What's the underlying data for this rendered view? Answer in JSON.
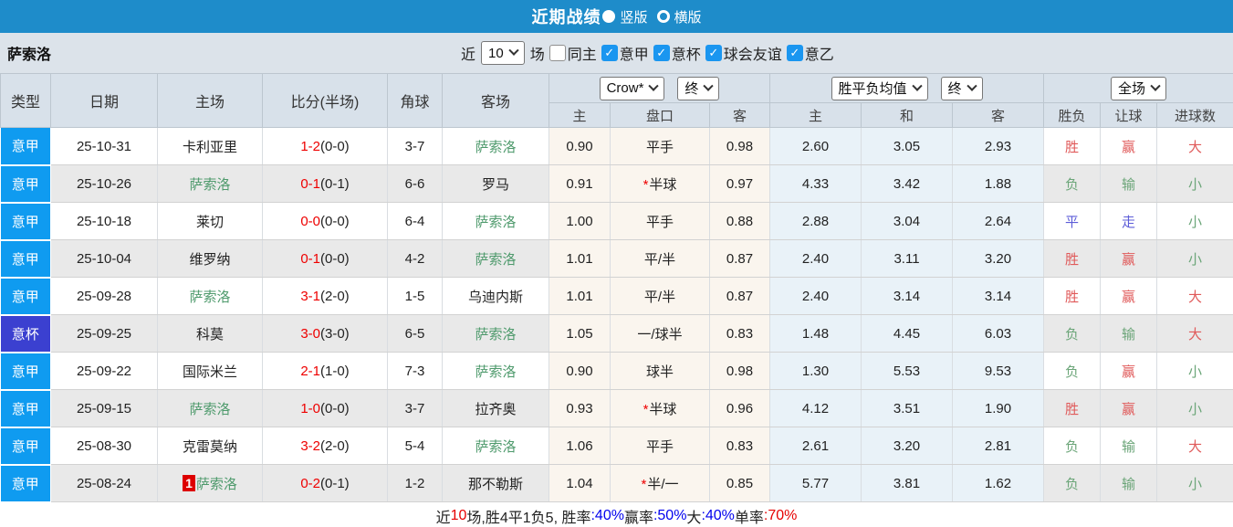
{
  "title_bar": {
    "title": "近期战绩",
    "radio_options": [
      {
        "label": "竖版",
        "selected": true
      },
      {
        "label": "横版",
        "selected": false
      }
    ]
  },
  "filter_bar": {
    "team_name": "萨索洛",
    "near_label": "近",
    "count_value": "10",
    "games_label": "场",
    "checkboxes": [
      {
        "label": "同主",
        "checked": false
      },
      {
        "label": "意甲",
        "checked": true
      },
      {
        "label": "意杯",
        "checked": true
      },
      {
        "label": "球会友谊",
        "checked": true
      },
      {
        "label": "意乙",
        "checked": true
      }
    ]
  },
  "table": {
    "selects": {
      "company": "Crow*",
      "company_time": "终",
      "europe": "胜平负均值",
      "europe_time": "终",
      "scope": "全场"
    },
    "columns": [
      "类型",
      "日期",
      "主场",
      "比分(半场)",
      "角球",
      "客场"
    ],
    "sub_columns": [
      "主",
      "盘口",
      "客",
      "主",
      "和",
      "客",
      "胜负",
      "让球",
      "进球数"
    ],
    "rows": [
      {
        "type": "意甲",
        "type_cls": "league",
        "date": "25-10-31",
        "home": {
          "name": "卡利亚里",
          "self": false,
          "badge": ""
        },
        "score": {
          "ft": "1-2",
          "ht": "(0-0)"
        },
        "corner": "3-7",
        "away": {
          "name": "萨索洛",
          "self": true,
          "badge": ""
        },
        "asia": {
          "home": "0.90",
          "handicap": "平手",
          "star": false,
          "away": "0.98"
        },
        "europe": {
          "home": "2.60",
          "draw": "3.05",
          "away": "2.93"
        },
        "result": {
          "wdl": {
            "t": "胜",
            "c": "red"
          },
          "let": {
            "t": "赢",
            "c": "red"
          },
          "goal": {
            "t": "大",
            "c": "red"
          }
        }
      },
      {
        "type": "意甲",
        "type_cls": "league",
        "date": "25-10-26",
        "home": {
          "name": "萨索洛",
          "self": true,
          "badge": ""
        },
        "score": {
          "ft": "0-1",
          "ht": "(0-1)"
        },
        "corner": "6-6",
        "away": {
          "name": "罗马",
          "self": false,
          "badge": ""
        },
        "asia": {
          "home": "0.91",
          "handicap": "半球",
          "star": true,
          "away": "0.97"
        },
        "europe": {
          "home": "4.33",
          "draw": "3.42",
          "away": "1.88"
        },
        "result": {
          "wdl": {
            "t": "负",
            "c": "green"
          },
          "let": {
            "t": "输",
            "c": "green"
          },
          "goal": {
            "t": "小",
            "c": "green"
          }
        }
      },
      {
        "type": "意甲",
        "type_cls": "league",
        "date": "25-10-18",
        "home": {
          "name": "莱切",
          "self": false,
          "badge": ""
        },
        "score": {
          "ft": "0-0",
          "ht": "(0-0)"
        },
        "corner": "6-4",
        "away": {
          "name": "萨索洛",
          "self": true,
          "badge": ""
        },
        "asia": {
          "home": "1.00",
          "handicap": "平手",
          "star": false,
          "away": "0.88"
        },
        "europe": {
          "home": "2.88",
          "draw": "3.04",
          "away": "2.64"
        },
        "result": {
          "wdl": {
            "t": "平",
            "c": "blue"
          },
          "let": {
            "t": "走",
            "c": "blue"
          },
          "goal": {
            "t": "小",
            "c": "green"
          }
        }
      },
      {
        "type": "意甲",
        "type_cls": "league",
        "date": "25-10-04",
        "home": {
          "name": "维罗纳",
          "self": false,
          "badge": ""
        },
        "score": {
          "ft": "0-1",
          "ht": "(0-0)"
        },
        "corner": "4-2",
        "away": {
          "name": "萨索洛",
          "self": true,
          "badge": ""
        },
        "asia": {
          "home": "1.01",
          "handicap": "平/半",
          "star": false,
          "away": "0.87"
        },
        "europe": {
          "home": "2.40",
          "draw": "3.11",
          "away": "3.20"
        },
        "result": {
          "wdl": {
            "t": "胜",
            "c": "red"
          },
          "let": {
            "t": "赢",
            "c": "red"
          },
          "goal": {
            "t": "小",
            "c": "green"
          }
        }
      },
      {
        "type": "意甲",
        "type_cls": "league",
        "date": "25-09-28",
        "home": {
          "name": "萨索洛",
          "self": true,
          "badge": ""
        },
        "score": {
          "ft": "3-1",
          "ht": "(2-0)"
        },
        "corner": "1-5",
        "away": {
          "name": "乌迪内斯",
          "self": false,
          "badge": ""
        },
        "asia": {
          "home": "1.01",
          "handicap": "平/半",
          "star": false,
          "away": "0.87"
        },
        "europe": {
          "home": "2.40",
          "draw": "3.14",
          "away": "3.14"
        },
        "result": {
          "wdl": {
            "t": "胜",
            "c": "red"
          },
          "let": {
            "t": "赢",
            "c": "red"
          },
          "goal": {
            "t": "大",
            "c": "red"
          }
        }
      },
      {
        "type": "意杯",
        "type_cls": "cup",
        "date": "25-09-25",
        "home": {
          "name": "科莫",
          "self": false,
          "badge": ""
        },
        "score": {
          "ft": "3-0",
          "ht": "(3-0)"
        },
        "corner": "6-5",
        "away": {
          "name": "萨索洛",
          "self": true,
          "badge": ""
        },
        "asia": {
          "home": "1.05",
          "handicap": "一/球半",
          "star": false,
          "away": "0.83"
        },
        "europe": {
          "home": "1.48",
          "draw": "4.45",
          "away": "6.03"
        },
        "result": {
          "wdl": {
            "t": "负",
            "c": "green"
          },
          "let": {
            "t": "输",
            "c": "green"
          },
          "goal": {
            "t": "大",
            "c": "red"
          }
        }
      },
      {
        "type": "意甲",
        "type_cls": "league",
        "date": "25-09-22",
        "home": {
          "name": "国际米兰",
          "self": false,
          "badge": ""
        },
        "score": {
          "ft": "2-1",
          "ht": "(1-0)"
        },
        "corner": "7-3",
        "away": {
          "name": "萨索洛",
          "self": true,
          "badge": ""
        },
        "asia": {
          "home": "0.90",
          "handicap": "球半",
          "star": false,
          "away": "0.98"
        },
        "europe": {
          "home": "1.30",
          "draw": "5.53",
          "away": "9.53"
        },
        "result": {
          "wdl": {
            "t": "负",
            "c": "green"
          },
          "let": {
            "t": "赢",
            "c": "red"
          },
          "goal": {
            "t": "小",
            "c": "green"
          }
        }
      },
      {
        "type": "意甲",
        "type_cls": "league",
        "date": "25-09-15",
        "home": {
          "name": "萨索洛",
          "self": true,
          "badge": ""
        },
        "score": {
          "ft": "1-0",
          "ht": "(0-0)"
        },
        "corner": "3-7",
        "away": {
          "name": "拉齐奥",
          "self": false,
          "badge": ""
        },
        "asia": {
          "home": "0.93",
          "handicap": "半球",
          "star": true,
          "away": "0.96"
        },
        "europe": {
          "home": "4.12",
          "draw": "3.51",
          "away": "1.90"
        },
        "result": {
          "wdl": {
            "t": "胜",
            "c": "red"
          },
          "let": {
            "t": "赢",
            "c": "red"
          },
          "goal": {
            "t": "小",
            "c": "green"
          }
        }
      },
      {
        "type": "意甲",
        "type_cls": "league",
        "date": "25-08-30",
        "home": {
          "name": "克雷莫纳",
          "self": false,
          "badge": ""
        },
        "score": {
          "ft": "3-2",
          "ht": "(2-0)"
        },
        "corner": "5-4",
        "away": {
          "name": "萨索洛",
          "self": true,
          "badge": ""
        },
        "asia": {
          "home": "1.06",
          "handicap": "平手",
          "star": false,
          "away": "0.83"
        },
        "europe": {
          "home": "2.61",
          "draw": "3.20",
          "away": "2.81"
        },
        "result": {
          "wdl": {
            "t": "负",
            "c": "green"
          },
          "let": {
            "t": "输",
            "c": "green"
          },
          "goal": {
            "t": "大",
            "c": "red"
          }
        }
      },
      {
        "type": "意甲",
        "type_cls": "league",
        "date": "25-08-24",
        "home": {
          "name": "萨索洛",
          "self": true,
          "badge": "1"
        },
        "score": {
          "ft": "0-2",
          "ht": "(0-1)"
        },
        "corner": "1-2",
        "away": {
          "name": "那不勒斯",
          "self": false,
          "badge": ""
        },
        "asia": {
          "home": "1.04",
          "handicap": "半/一",
          "star": true,
          "away": "0.85"
        },
        "europe": {
          "home": "5.77",
          "draw": "3.81",
          "away": "1.62"
        },
        "result": {
          "wdl": {
            "t": "负",
            "c": "green"
          },
          "let": {
            "t": "输",
            "c": "green"
          },
          "goal": {
            "t": "小",
            "c": "green"
          }
        }
      }
    ]
  },
  "footer": {
    "segments": [
      {
        "t": "近",
        "c": ""
      },
      {
        "t": "10",
        "c": "red"
      },
      {
        "t": "场,胜4平1负5, 胜率",
        "c": ""
      },
      {
        "t": ":40%",
        "c": "blue"
      },
      {
        "t": " 赢率",
        "c": ""
      },
      {
        "t": ":50%",
        "c": "blue"
      },
      {
        "t": " 大",
        "c": ""
      },
      {
        "t": ":40%",
        "c": "blue"
      },
      {
        "t": " 单率",
        "c": ""
      },
      {
        "t": ":70%",
        "c": "red"
      }
    ]
  }
}
